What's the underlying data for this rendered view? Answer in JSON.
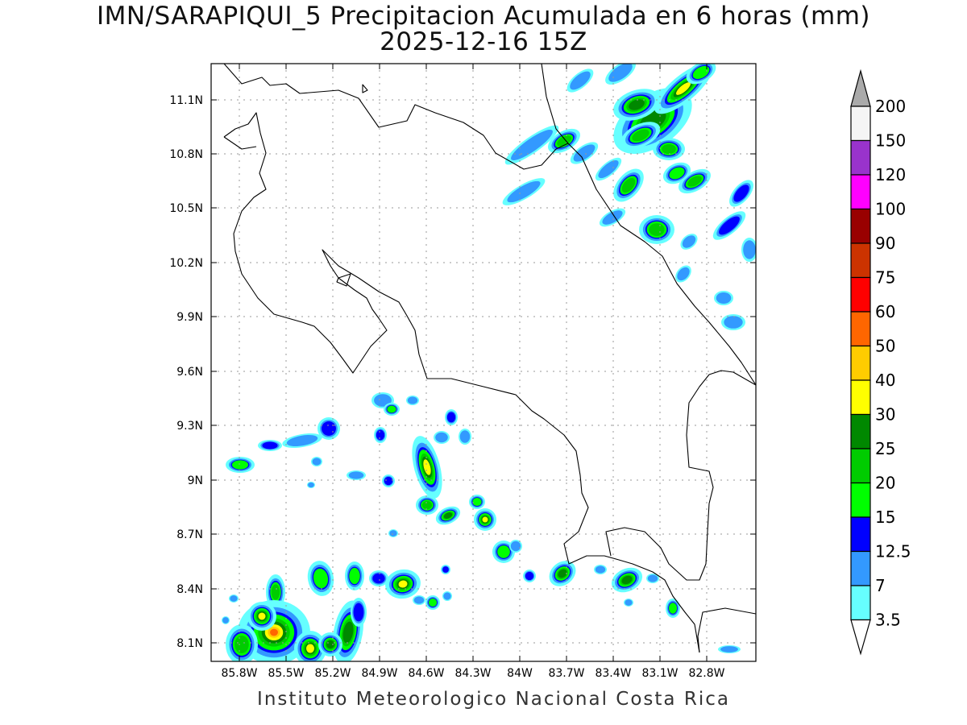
{
  "title": {
    "line1": "IMN/SARAPIQUI_5 Precipitacion Acumulada en 6 horas (mm)",
    "line2": "2025-12-16 15Z"
  },
  "credit": "Instituto Meteorologico Nacional Costa Rica",
  "map": {
    "lon_range": [
      -86.0,
      -82.6
    ],
    "lat_range": [
      8.0,
      11.3
    ],
    "lon_ticks": [
      "85.8W",
      "85.5W",
      "85.2W",
      "84.9W",
      "84.6W",
      "84.3W",
      "84W",
      "83.7W",
      "83.4W",
      "83.1W",
      "82.8W"
    ],
    "lat_ticks": [
      "11.1N",
      "10.8N",
      "10.5N",
      "10.2N",
      "9.9N",
      "9.6N",
      "9.3N",
      "9N",
      "8.7N",
      "8.4N",
      "8.1N"
    ],
    "grid": "dotted"
  },
  "colorbar": {
    "levels": [
      "3.5",
      "7",
      "12.5",
      "15",
      "20",
      "25",
      "30",
      "40",
      "50",
      "60",
      "75",
      "90",
      "100",
      "120",
      "150",
      "200"
    ],
    "colors": [
      "#ffffff",
      "#66ffff",
      "#3399ff",
      "#0000ff",
      "#00ff00",
      "#00cc00",
      "#008800",
      "#ffff00",
      "#ffcc00",
      "#ff6600",
      "#ff0000",
      "#cc3300",
      "#990000",
      "#ff00ff",
      "#9933cc",
      "#f5f5f5",
      "#aaaaaa"
    ]
  },
  "precip_colors": {
    "c3": "#66ffff",
    "c7": "#3399ff",
    "c12": "#0000ff",
    "c15": "#00ff00",
    "c20": "#00cc00",
    "c25": "#008800",
    "c30": "#ffff00",
    "c40": "#ffcc00",
    "c50": "#ff6600",
    "c60": "#ff0000"
  }
}
